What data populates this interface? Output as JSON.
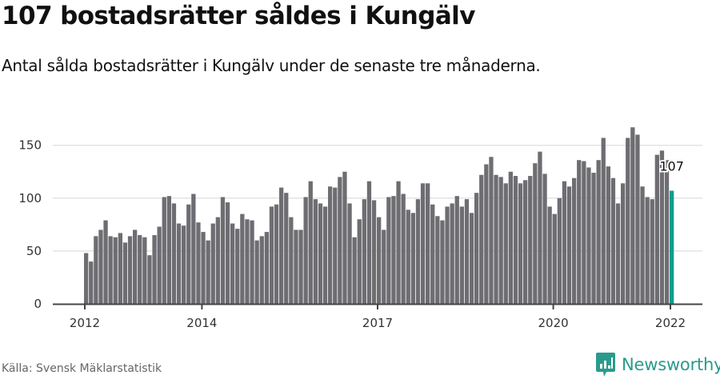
{
  "header": {
    "title": "107 bostadsrätter såldes i Kungälv",
    "subtitle": "Antal sålda bostadsrätter i Kungälv under de senaste tre månaderna."
  },
  "footer": {
    "source": "Källa: Svensk Mäklarstatistik",
    "brand": "Newsworthy",
    "brand_icon": "bar-chart-speech-bubble-icon"
  },
  "colors": {
    "bar": "#6e6d72",
    "highlight": "#0f9d8f",
    "grid": "#e3e3e3",
    "axis": "#444444",
    "brand": "#2a9a8c"
  },
  "chart_data": {
    "type": "bar",
    "title": "107 bostadsrätter såldes i Kungälv",
    "subtitle": "Antal sålda bostadsrätter i Kungälv under de senaste tre månaderna.",
    "xlabel": "",
    "ylabel": "",
    "ylim": [
      0,
      170
    ],
    "yticks": [
      0,
      50,
      100,
      150
    ],
    "xticks": [
      "2012",
      "2014",
      "2017",
      "2020",
      "2022"
    ],
    "grid": "horizontal",
    "legend": "none",
    "start": "2012-01",
    "end": "2022-01",
    "frequency": "monthly",
    "annotation": {
      "label": "107",
      "at": "2022-01"
    },
    "highlight_last": true,
    "values": [
      48,
      40,
      64,
      70,
      79,
      64,
      63,
      67,
      58,
      64,
      70,
      65,
      63,
      46,
      65,
      73,
      101,
      102,
      95,
      76,
      74,
      94,
      104,
      77,
      68,
      60,
      76,
      82,
      101,
      96,
      76,
      71,
      85,
      80,
      79,
      60,
      64,
      68,
      92,
      94,
      110,
      105,
      82,
      70,
      70,
      101,
      116,
      99,
      95,
      92,
      111,
      110,
      120,
      125,
      95,
      63,
      80,
      99,
      116,
      98,
      82,
      70,
      101,
      102,
      116,
      104,
      89,
      86,
      99,
      114,
      114,
      94,
      83,
      79,
      92,
      95,
      102,
      92,
      99,
      86,
      105,
      122,
      132,
      139,
      122,
      120,
      114,
      125,
      121,
      114,
      117,
      121,
      133,
      144,
      123,
      92,
      85,
      100,
      116,
      111,
      119,
      136,
      135,
      129,
      124,
      136,
      157,
      130,
      119,
      95,
      114,
      157,
      167,
      160,
      111,
      101,
      99,
      141,
      145,
      136,
      107
    ]
  }
}
